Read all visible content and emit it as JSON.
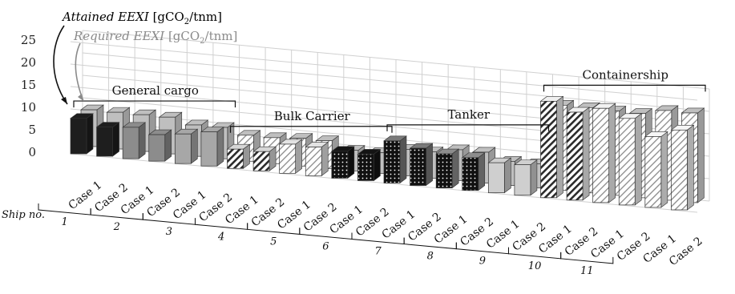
{
  "chart_data": {
    "type": "bar",
    "style": "3d-clustered",
    "ylim": [
      0,
      25
    ],
    "yticks": [
      "25",
      "20",
      "15",
      "10",
      "5",
      "0"
    ],
    "grid": true,
    "ship_axis_label": "Ship no.",
    "series": [
      {
        "key": "attained",
        "name_italic": "Attained EEXI",
        "unit_main": "[gCO",
        "unit_sub": "2",
        "unit_end": "/tnm]",
        "values": [
          7.9,
          6.5,
          7.0,
          5.9,
          6.6,
          7.6,
          4.3,
          4.3,
          6.5,
          6.4,
          6.0,
          5.9,
          9.4,
          8.3,
          7.6,
          7.3,
          6.7,
          6.8,
          21.5,
          19.6,
          21.0,
          19.3,
          15.8,
          17.8
        ]
      },
      {
        "key": "required",
        "name_italic": "Required EEXI",
        "unit_main": "[gCO",
        "unit_sub": "2",
        "unit_end": "/tnm]",
        "values": [
          8.2,
          8.2,
          8.2,
          8.2,
          7.0,
          7.0,
          5.8,
          5.8,
          6.2,
          6.2,
          4.6,
          4.6,
          5.9,
          5.9,
          6.9,
          6.9,
          5.4,
          5.4,
          19.0,
          19.0,
          18.8,
          18.8,
          20.0,
          20.0
        ]
      }
    ],
    "cases": [
      "Case 1",
      "Case 2",
      "Case 1",
      "Case 2",
      "Case 1",
      "Case 2",
      "Case 1",
      "Case 2",
      "Case 1",
      "Case 2",
      "Case 1",
      "Case 2",
      "Case 1",
      "Case 2",
      "Case 1",
      "Case 2",
      "Case 1",
      "Case 2",
      "Case 1",
      "Case 2",
      "Case 1",
      "Case 2",
      "Case 1",
      "Case 2"
    ],
    "ships": [
      "1",
      "2",
      "3",
      "4",
      "5",
      "6",
      "7",
      "8",
      "9",
      "10",
      "11"
    ],
    "ship_of_case": [
      1,
      1,
      2,
      2,
      3,
      3,
      4,
      4,
      5,
      5,
      6,
      6,
      7,
      7,
      8,
      8,
      9,
      9,
      10,
      10,
      11,
      11,
      11,
      11
    ],
    "groups": [
      {
        "label": "General cargo",
        "from": 0,
        "to": 5
      },
      {
        "label": "Bulk Carrier",
        "from": 6,
        "to": 11
      },
      {
        "label": "Tanker",
        "from": 12,
        "to": 17
      },
      {
        "label": "Containership",
        "from": 18,
        "to": 23
      }
    ],
    "colors": {
      "attained": [
        "#1e1e1e",
        "#1e1e1e",
        "#8c8c8c",
        "#8c8c8c",
        "#a7a7a7",
        "#a7a7a7",
        "#d6d6d6",
        "#d6d6d6",
        "#e3e3e3",
        "#e3e3e3",
        "#141414",
        "#141414",
        "#7a7a7a",
        "#7a7a7a",
        "#8d8d8d",
        "#8d8d8d",
        "#cfcfcf",
        "#cfcfcf",
        "#f0f0f0",
        "#f0f0f0",
        "#f2f2f2",
        "#f2f2f2",
        "#f6f6f6",
        "#f6f6f6"
      ],
      "required": "#bfbfbf",
      "grid": "#d0d0d0"
    },
    "patterns": [
      "solid",
      "solid",
      "solid",
      "solid",
      "solid",
      "solid",
      "hatch",
      "hatch",
      "hatchlight",
      "hatchlight",
      "dots",
      "dots",
      "dots",
      "dots",
      "dots",
      "dots",
      "solid",
      "solid",
      "hatch",
      "hatch",
      "hatchlight",
      "hatchlight",
      "hatchlight",
      "hatchlight"
    ]
  }
}
